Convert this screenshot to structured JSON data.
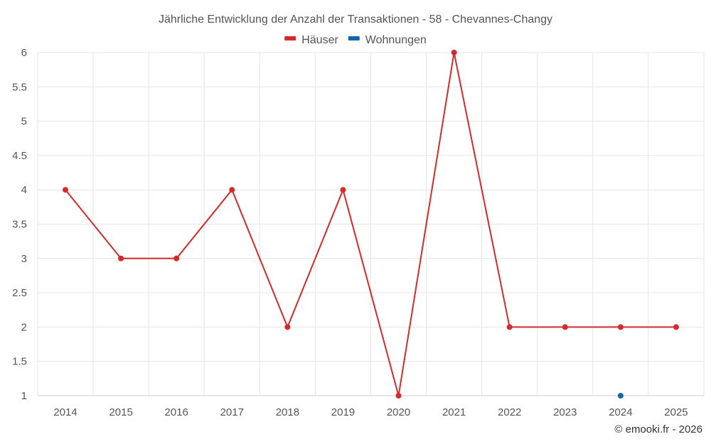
{
  "chart_data": {
    "type": "line",
    "title": "Jährliche Entwicklung der Anzahl der Transaktionen - 58 - Chevannes-Changy",
    "categories": [
      "2014",
      "2015",
      "2016",
      "2017",
      "2018",
      "2019",
      "2020",
      "2021",
      "2022",
      "2023",
      "2024",
      "2025"
    ],
    "y_ticks": [
      "1",
      "1.5",
      "2",
      "2.5",
      "3",
      "3.5",
      "4",
      "4.5",
      "5",
      "5.5",
      "6"
    ],
    "ylim": [
      1,
      6
    ],
    "grid": true,
    "legend_position": "top-center",
    "series": [
      {
        "name": "Häuser",
        "color": "#d42a2a",
        "values": [
          4,
          3,
          3,
          4,
          2,
          4,
          1,
          6,
          2,
          2,
          2,
          2
        ]
      },
      {
        "name": "Wohnungen",
        "color": "#1565a7",
        "values": [
          null,
          null,
          null,
          null,
          null,
          null,
          null,
          null,
          null,
          null,
          1,
          null
        ]
      }
    ]
  },
  "credit": "© emooki.fr - 2026"
}
